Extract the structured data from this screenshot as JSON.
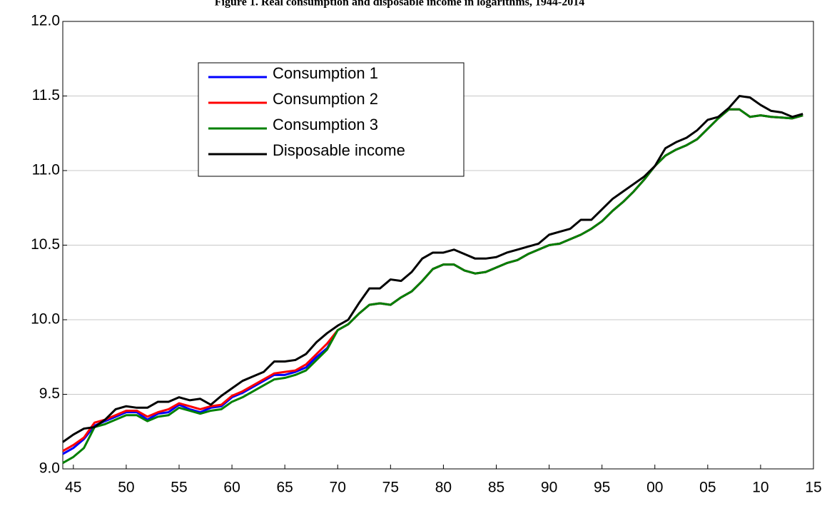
{
  "chart_data": {
    "type": "line",
    "title": "Figure 1. Real consumption and disposable income in logarithms, 1944-2014",
    "x": [
      1944,
      1945,
      1946,
      1947,
      1948,
      1949,
      1950,
      1951,
      1952,
      1953,
      1954,
      1955,
      1956,
      1957,
      1958,
      1959,
      1960,
      1961,
      1962,
      1963,
      1964,
      1965,
      1966,
      1967,
      1968,
      1969,
      1970,
      1971,
      1972,
      1973,
      1974,
      1975,
      1976,
      1977,
      1978,
      1979,
      1980,
      1981,
      1982,
      1983,
      1984,
      1985,
      1986,
      1987,
      1988,
      1989,
      1990,
      1991,
      1992,
      1993,
      1994,
      1995,
      1996,
      1997,
      1998,
      1999,
      2000,
      2001,
      2002,
      2003,
      2004,
      2005,
      2006,
      2007,
      2008,
      2009,
      2010,
      2011,
      2012,
      2013,
      2014
    ],
    "series": [
      {
        "name": "Consumption 1",
        "color": "#0000ff",
        "values": [
          9.1,
          9.14,
          9.2,
          9.29,
          9.32,
          9.35,
          9.38,
          9.38,
          9.33,
          9.37,
          9.38,
          9.43,
          9.4,
          9.38,
          9.41,
          9.42,
          9.48,
          9.51,
          9.55,
          9.59,
          9.63,
          9.63,
          9.65,
          9.68,
          9.75,
          9.81,
          9.93,
          9.97,
          10.04,
          10.1,
          10.11,
          10.1,
          10.15,
          10.19,
          10.26,
          10.34,
          10.37,
          10.37,
          10.33,
          10.31,
          10.32,
          10.35,
          10.38,
          10.4,
          10.44,
          10.47,
          10.5,
          10.51,
          10.54,
          10.57,
          10.61,
          10.66,
          10.73,
          10.79,
          10.86,
          10.94,
          11.03,
          11.1,
          11.14,
          11.17,
          11.21,
          11.28,
          11.35,
          11.41,
          11.41,
          11.36,
          11.37,
          11.36,
          11.355,
          11.35,
          11.37
        ]
      },
      {
        "name": "Consumption 2",
        "color": "#ff0000",
        "values": [
          9.12,
          9.16,
          9.21,
          9.31,
          9.33,
          9.36,
          9.39,
          9.39,
          9.35,
          9.38,
          9.4,
          9.44,
          9.42,
          9.4,
          9.42,
          9.43,
          9.49,
          9.52,
          9.56,
          9.6,
          9.64,
          9.65,
          9.66,
          9.7,
          9.77,
          9.84,
          9.93,
          9.97,
          10.04,
          10.1,
          10.11,
          10.1,
          10.15,
          10.19,
          10.26,
          10.34,
          10.37,
          10.37,
          10.33,
          10.31,
          10.32,
          10.35,
          10.38,
          10.4,
          10.44,
          10.47,
          10.5,
          10.51,
          10.54,
          10.57,
          10.61,
          10.66,
          10.73,
          10.79,
          10.86,
          10.94,
          11.03,
          11.1,
          11.14,
          11.17,
          11.21,
          11.28,
          11.35,
          11.41,
          11.41,
          11.36,
          11.37,
          11.36,
          11.355,
          11.35,
          11.37
        ]
      },
      {
        "name": "Consumption 3",
        "color": "#008000",
        "values": [
          9.04,
          9.08,
          9.14,
          9.28,
          9.3,
          9.33,
          9.36,
          9.36,
          9.32,
          9.35,
          9.36,
          9.41,
          9.39,
          9.37,
          9.39,
          9.4,
          9.45,
          9.48,
          9.52,
          9.56,
          9.6,
          9.61,
          9.63,
          9.66,
          9.73,
          9.8,
          9.93,
          9.97,
          10.04,
          10.1,
          10.11,
          10.1,
          10.15,
          10.19,
          10.26,
          10.34,
          10.37,
          10.37,
          10.33,
          10.31,
          10.32,
          10.35,
          10.38,
          10.4,
          10.44,
          10.47,
          10.5,
          10.51,
          10.54,
          10.57,
          10.61,
          10.66,
          10.73,
          10.79,
          10.86,
          10.94,
          11.03,
          11.1,
          11.14,
          11.17,
          11.21,
          11.28,
          11.35,
          11.41,
          11.41,
          11.36,
          11.37,
          11.36,
          11.355,
          11.35,
          11.37
        ]
      },
      {
        "name": "Disposable income",
        "color": "#000000",
        "values": [
          9.18,
          9.23,
          9.27,
          9.28,
          9.33,
          9.4,
          9.42,
          9.41,
          9.41,
          9.45,
          9.45,
          9.48,
          9.46,
          9.47,
          9.43,
          9.49,
          9.54,
          9.59,
          9.62,
          9.65,
          9.72,
          9.72,
          9.73,
          9.77,
          9.85,
          9.91,
          9.96,
          10.0,
          10.11,
          10.21,
          10.21,
          10.27,
          10.26,
          10.32,
          10.41,
          10.45,
          10.45,
          10.47,
          10.44,
          10.41,
          10.41,
          10.42,
          10.45,
          10.47,
          10.49,
          10.51,
          10.57,
          10.59,
          10.61,
          10.67,
          10.67,
          10.74,
          10.81,
          10.86,
          10.91,
          10.96,
          11.03,
          11.15,
          11.19,
          11.22,
          11.27,
          11.34,
          11.36,
          11.42,
          11.5,
          11.49,
          11.44,
          11.4,
          11.39,
          11.36,
          11.38
        ]
      }
    ],
    "xlim": [
      1944,
      2015
    ],
    "xticks": [
      {
        "value": 1945,
        "label": "45"
      },
      {
        "value": 1950,
        "label": "50"
      },
      {
        "value": 1955,
        "label": "55"
      },
      {
        "value": 1960,
        "label": "60"
      },
      {
        "value": 1965,
        "label": "65"
      },
      {
        "value": 1970,
        "label": "70"
      },
      {
        "value": 1975,
        "label": "75"
      },
      {
        "value": 1980,
        "label": "80"
      },
      {
        "value": 1985,
        "label": "85"
      },
      {
        "value": 1990,
        "label": "90"
      },
      {
        "value": 1995,
        "label": "95"
      },
      {
        "value": 2000,
        "label": "00"
      },
      {
        "value": 2005,
        "label": "05"
      },
      {
        "value": 2010,
        "label": "10"
      },
      {
        "value": 2015,
        "label": "15"
      }
    ],
    "ylim": [
      9,
      12
    ],
    "yticks": [
      {
        "value": 9,
        "label": "9.0"
      },
      9.5,
      {
        "value": 10,
        "label": "10.0"
      },
      10.5,
      {
        "value": 11,
        "label": "11.0"
      },
      11.5,
      {
        "value": 12,
        "label": "12.0"
      }
    ],
    "grid": true,
    "legend": "upper left"
  }
}
